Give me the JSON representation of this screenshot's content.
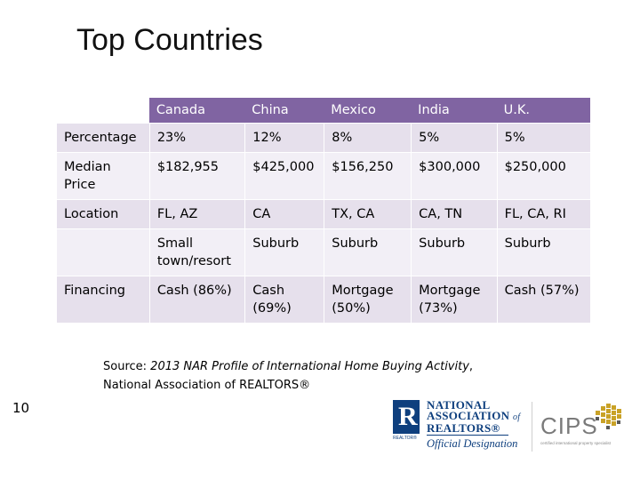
{
  "title": "Top Countries",
  "table": {
    "columns": [
      "Canada",
      "China",
      "Mexico",
      "India",
      "U.K."
    ],
    "rows": [
      {
        "label": "Percentage",
        "cells": [
          "23%",
          "12%",
          "8%",
          "5%",
          "5%"
        ]
      },
      {
        "label": "Median Price",
        "cells": [
          "$182,955",
          "$425,000",
          "$156,250",
          "$300,000",
          "$250,000"
        ]
      },
      {
        "label": "Location",
        "cells": [
          "FL, AZ",
          "CA",
          "TX, CA",
          "CA, TN",
          "FL, CA, RI"
        ]
      },
      {
        "label": "",
        "cells": [
          "Small town/resort",
          "Suburb",
          "Suburb",
          "Suburb",
          "Suburb"
        ]
      },
      {
        "label": "Financing",
        "cells": [
          "Cash (86%)",
          "Cash (69%)",
          "Mortgage (50%)",
          "Mortgage (73%)",
          "Cash (57%)"
        ]
      }
    ]
  },
  "source": {
    "prefix": "Source: ",
    "title": "2013 NAR Profile of International Home Buying Activity",
    "suffix": ",",
    "line2": "National Association of REALTORS®"
  },
  "slide_number": "10",
  "nar_logo": {
    "mark": "R",
    "small": "REALTOR®",
    "line1": "NATIONAL",
    "line2": "ASSOCIATION",
    "of": "of",
    "line3": "REALTORS®",
    "designation": "Official Designation"
  },
  "cips_logo": {
    "name": "CIPS",
    "tagline": "certified international property specialist"
  },
  "colors": {
    "header_bg": "#8064a2",
    "row_bg_a": "#e6e0ec",
    "row_bg_b": "#f2eff6",
    "nar_blue": "#0e3f7e",
    "cips_gold": "#c9a227"
  }
}
